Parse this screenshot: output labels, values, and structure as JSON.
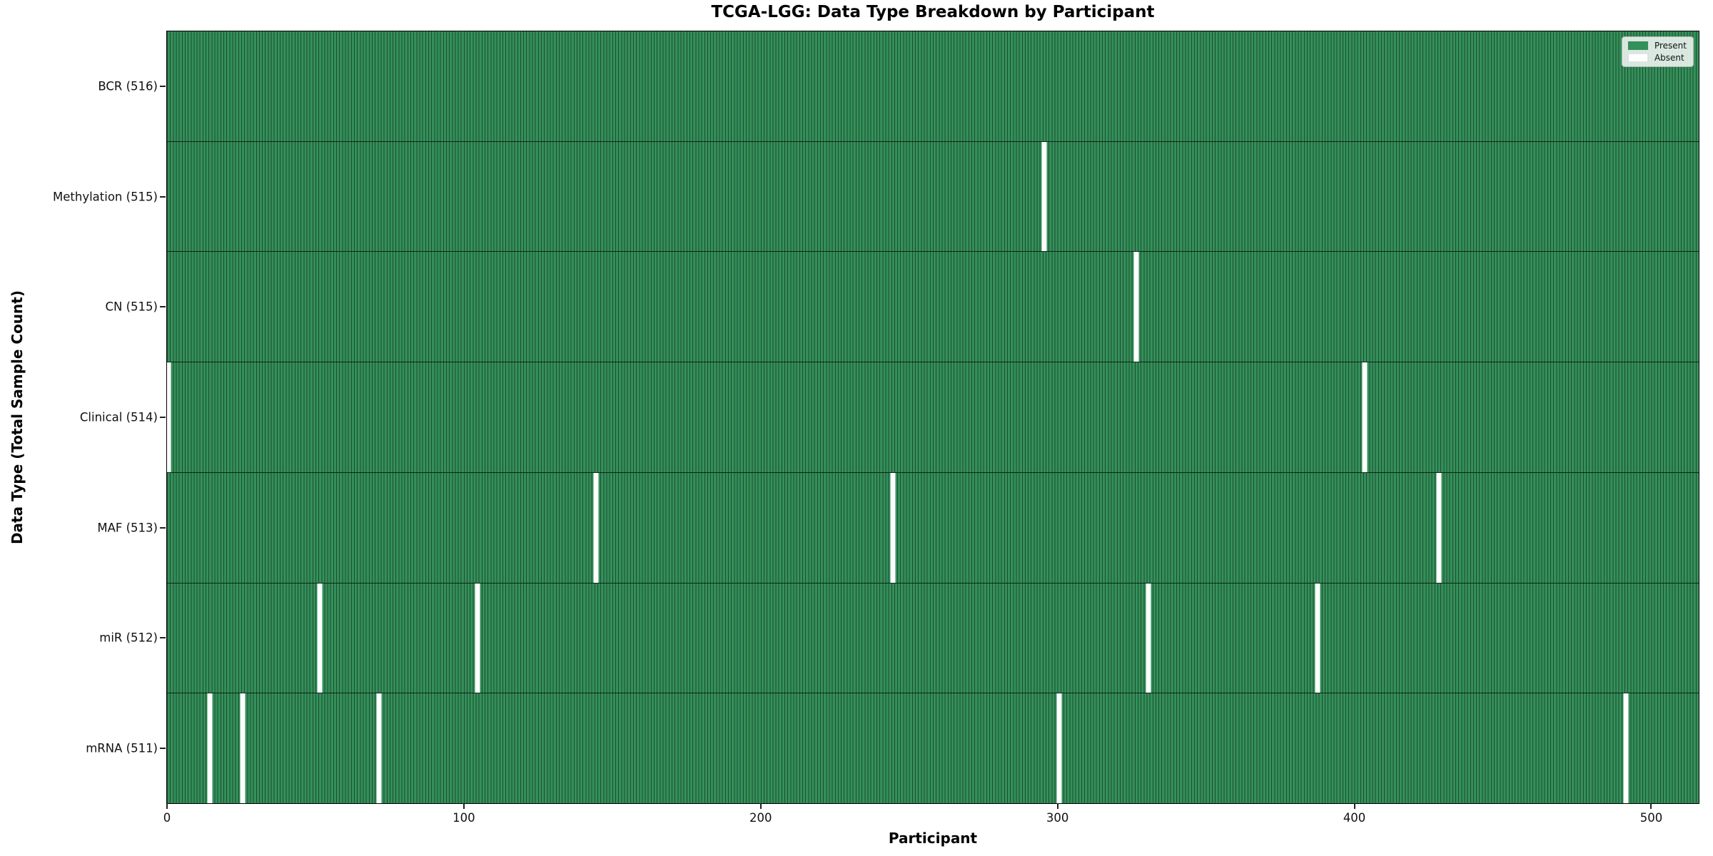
{
  "title": "TCGA-LGG: Data Type Breakdown by Participant",
  "xlabel": "Participant",
  "ylabel": "Data Type (Total Sample Count)",
  "legend": {
    "present_label": "Present",
    "absent_label": "Absent"
  },
  "colors": {
    "present": "#34905a",
    "cell_edge": "#1d4c30",
    "absent": "#ffffff",
    "row_divider": "#0e2418",
    "plot_border": "#000000",
    "legend_bg": "rgba(255,255,255,0.82)",
    "legend_border": "#b5b5b5"
  },
  "chart_data": {
    "type": "heatmap",
    "title": "TCGA-LGG: Data Type Breakdown by Participant",
    "xlabel": "Participant",
    "ylabel": "Data Type (Total Sample Count)",
    "legend_entries": [
      "Present",
      "Absent"
    ],
    "legend_position": "upper right",
    "total_participants": 516,
    "x_range": [
      0,
      516
    ],
    "x_ticks": [
      0,
      100,
      200,
      300,
      400,
      500
    ],
    "rows": [
      {
        "label": "BCR (516)",
        "data_type": "BCR",
        "present_count": 516,
        "absent_participants": []
      },
      {
        "label": "Methylation (515)",
        "data_type": "Methylation",
        "present_count": 515,
        "absent_participants": [
          295
        ]
      },
      {
        "label": "CN (515)",
        "data_type": "CN",
        "present_count": 515,
        "absent_participants": [
          326
        ]
      },
      {
        "label": "Clinical (514)",
        "data_type": "Clinical",
        "present_count": 514,
        "absent_participants": [
          0,
          403
        ]
      },
      {
        "label": "MAF (513)",
        "data_type": "MAF",
        "present_count": 513,
        "absent_participants": [
          144,
          244,
          428
        ]
      },
      {
        "label": "miR (512)",
        "data_type": "miR",
        "present_count": 512,
        "absent_participants": [
          51,
          104,
          330,
          387
        ]
      },
      {
        "label": "mRNA (511)",
        "data_type": "mRNA",
        "present_count": 511,
        "absent_participants": [
          14,
          25,
          71,
          300,
          491
        ]
      }
    ]
  }
}
